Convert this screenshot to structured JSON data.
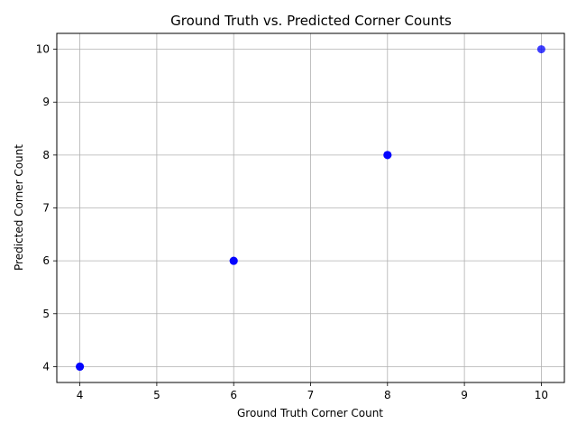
{
  "chart_data": {
    "type": "scatter",
    "title": "Ground Truth vs. Predicted Corner Counts",
    "xlabel": "Ground Truth Corner Count",
    "ylabel": "Predicted Corner Count",
    "xlim": [
      3.7,
      10.3
    ],
    "ylim": [
      3.7,
      10.3
    ],
    "xticks": [
      4,
      5,
      6,
      7,
      8,
      9,
      10
    ],
    "yticks": [
      4,
      5,
      6,
      7,
      8,
      9,
      10
    ],
    "grid": true,
    "point_color": "#0000ff",
    "points": [
      {
        "x": 4,
        "y": 4
      },
      {
        "x": 4,
        "y": 4
      },
      {
        "x": 4,
        "y": 4
      },
      {
        "x": 6,
        "y": 6
      },
      {
        "x": 6,
        "y": 6
      },
      {
        "x": 6,
        "y": 6
      },
      {
        "x": 8,
        "y": 8
      },
      {
        "x": 8,
        "y": 8
      },
      {
        "x": 8,
        "y": 8
      },
      {
        "x": 10,
        "y": 10
      }
    ]
  }
}
